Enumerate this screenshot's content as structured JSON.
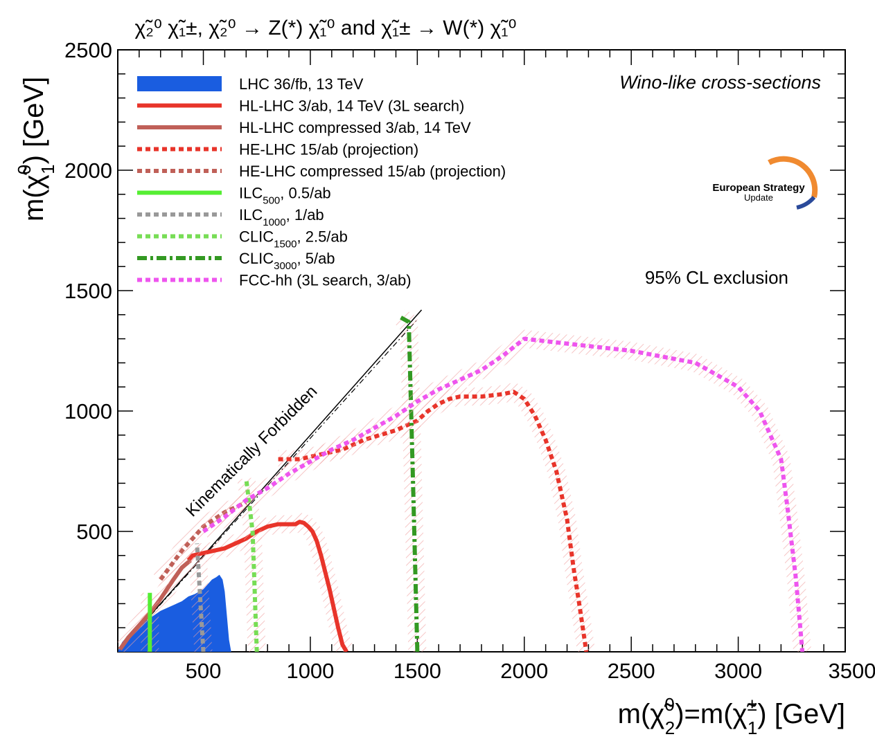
{
  "chart_data": {
    "type": "line",
    "title": "χ̃₂⁰ χ̃₁±, χ̃₂⁰ → Z(*) χ̃₁⁰ and χ̃₁± → W(*) χ̃₁⁰",
    "xlabel": "m(χ̃₂⁰)=m(χ̃₁±) [GeV]",
    "ylabel": "m(χ̃₁⁰) [GeV]",
    "xlim": [
      100,
      3500
    ],
    "ylim": [
      0,
      2500
    ],
    "x_ticks": [
      "500",
      "1000",
      "1500",
      "2000",
      "2500",
      "3000",
      "3500"
    ],
    "y_ticks": [
      "500",
      "1000",
      "1500",
      "2000",
      "2500"
    ],
    "annotations": {
      "top_right": "Wino-like cross-sections",
      "cl": "95% CL exclusion",
      "diagonal": "Kinematically Forbidden",
      "logo_main": "European Strategy",
      "logo_sub": "Update"
    },
    "legend_position": "top-left",
    "legend": [
      {
        "label": "LHC 36/fb, 13 TeV",
        "color": "#1a5de0",
        "style": "band"
      },
      {
        "label": "HL-LHC 3/ab, 14 TeV (3L search)",
        "color": "#e8342a",
        "style": "solid"
      },
      {
        "label": "HL-LHC compressed 3/ab, 14 TeV",
        "color": "#c06058",
        "style": "solid"
      },
      {
        "label": "HE-LHC 15/ab (projection)",
        "color": "#e8342a",
        "style": "dotted"
      },
      {
        "label": "HE-LHC compressed 15/ab (projection)",
        "color": "#c06058",
        "style": "dotted"
      },
      {
        "label": "ILC",
        "sub": "500",
        "rest": ", 0.5/ab",
        "color": "#55ee33",
        "style": "solid"
      },
      {
        "label": "ILC",
        "sub": "1000",
        "rest": ", 1/ab",
        "color": "#999999",
        "style": "dotted"
      },
      {
        "label": "CLIC",
        "sub": "1500",
        "rest": ", 2.5/ab",
        "color": "#77dd55",
        "style": "dotted"
      },
      {
        "label": "CLIC",
        "sub": "3000",
        "rest": ", 5/ab",
        "color": "#339922",
        "style": "dashdot"
      },
      {
        "label": "FCC-hh (3L search, 3/ab)",
        "color": "#ee55ee",
        "style": "dotted"
      }
    ],
    "series": [
      {
        "name": "LHC 36/fb, 13 TeV",
        "kind": "band",
        "x": [
          100,
          120,
          150,
          200,
          250,
          300,
          350,
          400,
          430,
          460,
          480,
          500,
          520,
          540,
          560,
          575,
          590,
          600,
          610,
          620,
          630,
          150
        ],
        "y": [
          0,
          40,
          70,
          110,
          140,
          170,
          190,
          210,
          230,
          240,
          250,
          260,
          280,
          300,
          310,
          320,
          300,
          250,
          150,
          50,
          0,
          0
        ]
      },
      {
        "name": "HL-LHC 3/ab, 14 TeV (3L search)",
        "x": [
          430,
          450,
          500,
          550,
          600,
          650,
          700,
          750,
          800,
          850,
          900,
          930,
          950,
          970,
          990,
          1010,
          1030,
          1050,
          1070,
          1090,
          1110,
          1130,
          1150,
          1170
        ],
        "y": [
          380,
          400,
          410,
          420,
          430,
          450,
          470,
          500,
          520,
          530,
          530,
          530,
          540,
          535,
          520,
          500,
          460,
          400,
          330,
          260,
          180,
          100,
          30,
          0
        ]
      },
      {
        "name": "HL-LHC compressed 3/ab, 14 TeV",
        "x": [
          110,
          150,
          200,
          250,
          300,
          330,
          360,
          400,
          440
        ],
        "y": [
          10,
          60,
          110,
          160,
          220,
          260,
          300,
          350,
          380
        ]
      },
      {
        "name": "HE-LHC 15/ab (projection)",
        "x": [
          850,
          950,
          1050,
          1150,
          1250,
          1400,
          1500,
          1550,
          1600,
          1650,
          1700,
          1800,
          1900,
          1950,
          2000,
          2050,
          2100,
          2150,
          2200,
          2230,
          2260,
          2290
        ],
        "y": [
          800,
          800,
          820,
          840,
          880,
          920,
          960,
          1000,
          1030,
          1050,
          1060,
          1060,
          1070,
          1080,
          1050,
          980,
          880,
          750,
          550,
          350,
          180,
          0
        ]
      },
      {
        "name": "HE-LHC compressed 15/ab (projection)",
        "x": [
          300,
          400,
          500,
          600,
          700
        ],
        "y": [
          300,
          420,
          520,
          580,
          620
        ]
      },
      {
        "name": "ILC500, 0.5/ab",
        "x": [
          250,
          250
        ],
        "y": [
          0,
          245
        ]
      },
      {
        "name": "ILC1000, 1/ab",
        "x": [
          500,
          480,
          470
        ],
        "y": [
          0,
          300,
          450
        ]
      },
      {
        "name": "CLIC1500, 2.5/ab",
        "x": [
          750,
          730,
          700
        ],
        "y": [
          0,
          500,
          720
        ]
      },
      {
        "name": "CLIC3000, 5/ab",
        "x": [
          1500,
          1480,
          1460,
          1420
        ],
        "y": [
          0,
          700,
          1370,
          1390
        ]
      },
      {
        "name": "FCC-hh (3L search, 3/ab)",
        "x": [
          500,
          600,
          700,
          800,
          900,
          1000,
          1100,
          1200,
          1300,
          1400,
          1500,
          1600,
          1700,
          1800,
          1900,
          2000,
          2200,
          2500,
          2800,
          3000,
          3100,
          3200,
          3230,
          3270,
          3300
        ],
        "y": [
          500,
          560,
          630,
          680,
          740,
          790,
          840,
          880,
          930,
          980,
          1040,
          1090,
          1130,
          1170,
          1230,
          1300,
          1280,
          1250,
          1200,
          1100,
          1000,
          800,
          600,
          300,
          0
        ]
      }
    ],
    "diagonals": {
      "solid": {
        "x": [
          100,
          1520
        ],
        "y": [
          0,
          1420
        ]
      },
      "dashdot": {
        "x": [
          100,
          1500
        ],
        "y": [
          0,
          1380
        ]
      }
    }
  }
}
